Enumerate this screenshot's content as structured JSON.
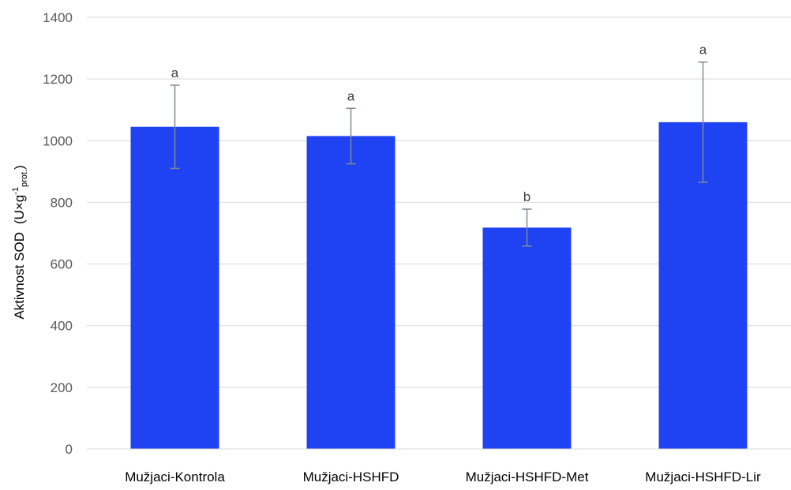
{
  "chart_data": {
    "type": "bar",
    "categories": [
      "Mužjaci-Kontrola",
      "Mužjaci-HSHFD",
      "Mužjaci-HSHFD-Met",
      "Mužjaci-HSHFD-Lir"
    ],
    "values": [
      1045,
      1015,
      718,
      1060
    ],
    "error_bars": [
      135,
      90,
      60,
      195
    ],
    "significance_letters": [
      "a",
      "a",
      "b",
      "a"
    ],
    "ylim": [
      0,
      1400
    ],
    "yticks": [
      "0",
      "200",
      "400",
      "600",
      "800",
      "1000",
      "1200",
      "1400"
    ],
    "ytick_values": [
      0,
      200,
      400,
      600,
      800,
      1000,
      1200,
      1400
    ],
    "ylabel": {
      "main": "Aktivnost SOD",
      "open": "(U×g",
      "superscript": "-1",
      "subscript": "prot.",
      "close": ")"
    },
    "xlabel": "",
    "title": "",
    "grid": "horizontal",
    "colors": {
      "bar": "#1F42F2",
      "error_bar": "#7F8A95",
      "grid": "#D9D9D9"
    }
  }
}
